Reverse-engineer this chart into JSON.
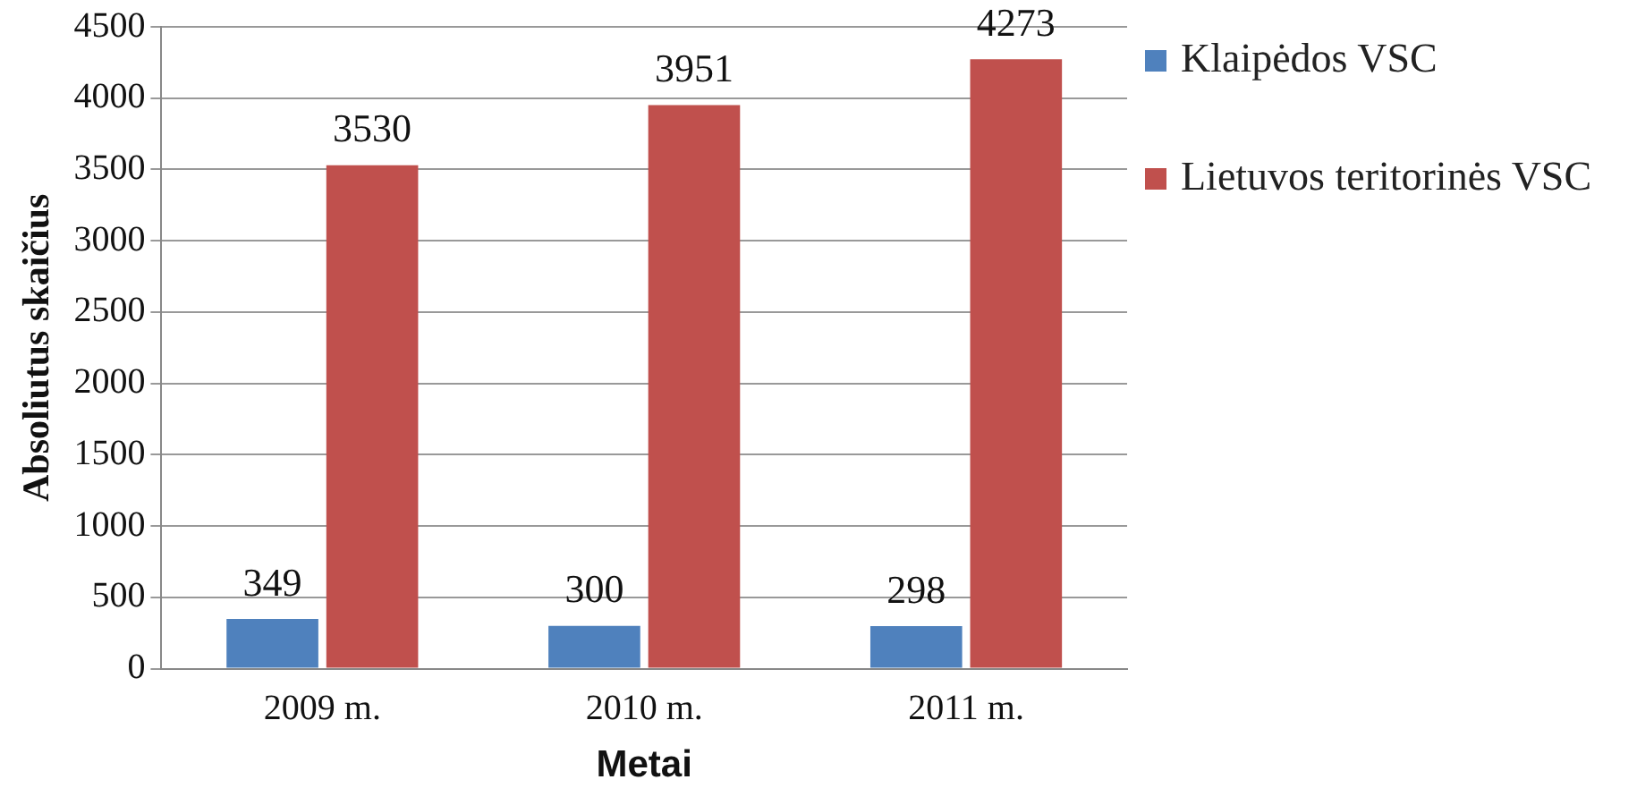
{
  "chart_data": {
    "type": "bar",
    "xlabel": "Metai",
    "ylabel": "Absoliutus skaičius",
    "categories": [
      "2009 m.",
      "2010 m.",
      "2011 m."
    ],
    "series": [
      {
        "name": "Klaipėdos VSC",
        "color": "#4f81bd",
        "values": [
          349,
          300,
          298
        ]
      },
      {
        "name": "Lietuvos teritorinės VSC",
        "color": "#c0504d",
        "values": [
          3530,
          3951,
          4273
        ]
      }
    ],
    "ylim": [
      0,
      4500
    ],
    "yticks": [
      0,
      500,
      1000,
      1500,
      2000,
      2500,
      3000,
      3500,
      4000,
      4500
    ],
    "grid": "y",
    "legend": "right",
    "data_labels": true
  }
}
